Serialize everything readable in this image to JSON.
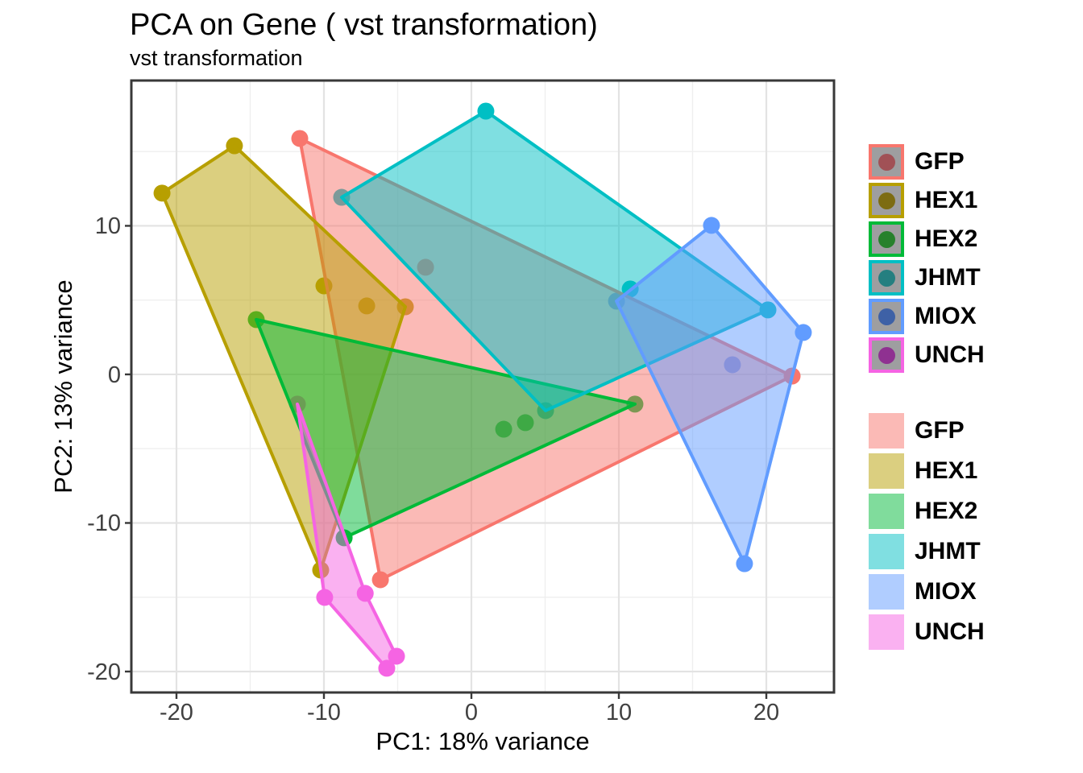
{
  "title": "PCA on Gene ( vst transformation)",
  "subtitle": "vst transformation",
  "chart_data": {
    "type": "scatter",
    "title": "PCA on Gene ( vst transformation)",
    "subtitle": "vst transformation",
    "xlabel": "PC1: 18% variance",
    "ylabel": "PC2: 13% variance",
    "xlim": [
      -23.06,
      24.59
    ],
    "ylim": [
      -21.41,
      19.78
    ],
    "x_ticks": [
      -20,
      -10,
      0,
      10,
      20
    ],
    "y_ticks": [
      10,
      0,
      -10,
      -20
    ],
    "x_minor_ticks": [
      -15,
      -5,
      5,
      15
    ],
    "y_minor_ticks": [
      -15,
      -5,
      5,
      15
    ],
    "grid": true,
    "legend_position": "right",
    "point_groups_note": "points drawn beneath semi-transparent convex-hull polygons (alpha 0.5)",
    "series": [
      {
        "name": "GFP",
        "color": "#F8766D",
        "fill_swatch": "#FBBAB6",
        "legend_dot": "#A15156",
        "points": [
          [
            -11.64,
            15.88
          ],
          [
            -3.11,
            7.21
          ],
          [
            21.75,
            -0.11
          ],
          [
            -6.17,
            -13.82
          ]
        ],
        "hull": [
          [
            -11.64,
            15.88
          ],
          [
            21.75,
            -0.11
          ],
          [
            -6.17,
            -13.82
          ]
        ]
      },
      {
        "name": "HEX1",
        "color": "#B79F00",
        "fill_swatch": "#DBCF80",
        "legend_dot": "#7D6C12",
        "points": [
          [
            -20.98,
            12.2
          ],
          [
            -16.07,
            15.39
          ],
          [
            -10.0,
            5.96
          ],
          [
            -7.1,
            4.61
          ],
          [
            -4.48,
            4.55
          ],
          [
            -10.22,
            -13.17
          ]
        ],
        "hull": [
          [
            -20.98,
            12.2
          ],
          [
            -16.07,
            15.39
          ],
          [
            -4.48,
            4.55
          ],
          [
            -10.22,
            -13.17
          ]
        ]
      },
      {
        "name": "HEX2",
        "color": "#00BA38",
        "fill_swatch": "#80DC9C",
        "legend_dot": "#27812C",
        "points": [
          [
            -14.59,
            3.69
          ],
          [
            2.19,
            -3.69
          ],
          [
            3.66,
            -3.25
          ],
          [
            11.09,
            -2.0
          ],
          [
            -8.63,
            -11.0
          ]
        ],
        "hull": [
          [
            -14.59,
            3.69
          ],
          [
            11.09,
            -2.0
          ],
          [
            -8.63,
            -11.0
          ]
        ]
      },
      {
        "name": "JHMT",
        "color": "#00BFC4",
        "fill_swatch": "#80DFE1",
        "legend_dot": "#257F80",
        "points": [
          [
            -8.8,
            11.92
          ],
          [
            0.98,
            17.72
          ],
          [
            10.77,
            5.75
          ],
          [
            20.11,
            4.34
          ],
          [
            5.03,
            -2.44
          ]
        ],
        "hull": [
          [
            -8.8,
            11.92
          ],
          [
            0.98,
            17.72
          ],
          [
            20.11,
            4.34
          ],
          [
            5.03,
            -2.44
          ]
        ]
      },
      {
        "name": "MIOX",
        "color": "#619CFF",
        "fill_swatch": "#B0CDFF",
        "legend_dot": "#3E61A6",
        "points": [
          [
            16.28,
            10.03
          ],
          [
            22.51,
            2.82
          ],
          [
            18.52,
            -12.74
          ],
          [
            9.84,
            4.93
          ],
          [
            17.7,
            0.65
          ]
        ],
        "hull": [
          [
            16.28,
            10.03
          ],
          [
            22.51,
            2.82
          ],
          [
            18.52,
            -12.74
          ],
          [
            9.84,
            4.93
          ]
        ]
      },
      {
        "name": "UNCH",
        "color": "#F564E3",
        "fill_swatch": "#FAB1F1",
        "legend_dot": "#8F3191",
        "points": [
          [
            -11.8,
            -2.0
          ],
          [
            -7.2,
            -14.74
          ],
          [
            -5.08,
            -18.97
          ],
          [
            -5.74,
            -19.78
          ],
          [
            -9.95,
            -15.01
          ]
        ],
        "hull": [
          [
            -11.8,
            -2.0
          ],
          [
            -7.2,
            -14.74
          ],
          [
            -5.08,
            -18.97
          ],
          [
            -5.74,
            -19.78
          ],
          [
            -9.95,
            -15.01
          ]
        ]
      }
    ],
    "style": {
      "major_grid_color": "#E3E3E3",
      "minor_grid_color": "#EFEFEF",
      "panel_border_color": "#383838",
      "tick_color": "#383838",
      "tick_label_color": "#404040",
      "legend_key_bg": "#9E9EA0",
      "fill_alpha": 0.5
    }
  }
}
